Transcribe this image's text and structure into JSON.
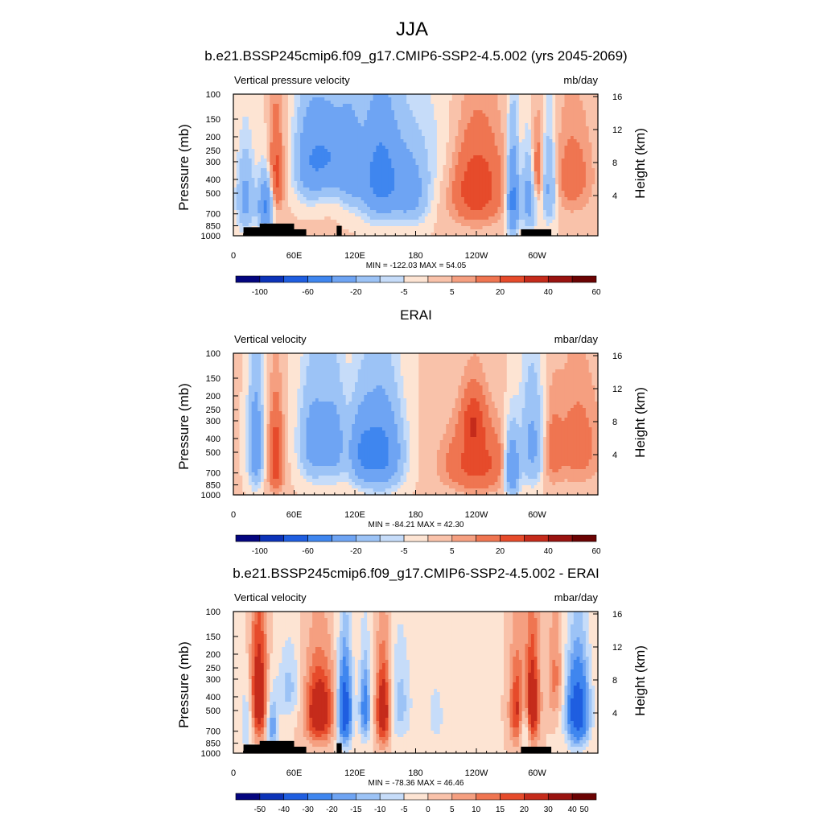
{
  "main_title": "JJA",
  "panels": [
    {
      "title": "b.e21.BSSP245cmip6.f09_g17.CMIP6-SSP2-4.5.002 (yrs 2045-2069)",
      "left_label": "Vertical pressure velocity",
      "right_label": "mb/day",
      "stats": "MIN = -122.03  MAX =  54.05",
      "colorbar": [
        "-100",
        "-60",
        "-20",
        "-5",
        "5",
        "20",
        "40",
        "60"
      ]
    },
    {
      "title": "ERAI",
      "left_label": "Vertical velocity",
      "right_label": "mbar/day",
      "stats": "MIN = -84.21  MAX =  42.30",
      "colorbar": [
        "-100",
        "-60",
        "-20",
        "-5",
        "5",
        "20",
        "40",
        "60"
      ]
    },
    {
      "title": "b.e21.BSSP245cmip6.f09_g17.CMIP6-SSP2-4.5.002 - ERAI",
      "left_label": "Vertical velocity",
      "right_label": "mbar/day",
      "stats": "MIN = -78.36  MAX =  46.46",
      "colorbar": [
        "-50",
        "-40",
        "-30",
        "-20",
        "-15",
        "-10",
        "-5",
        "0",
        "5",
        "10",
        "15",
        "20",
        "30",
        "40",
        "50"
      ]
    }
  ],
  "axes": {
    "ylabel": "Pressure (mb)",
    "y2label": "Height (km)",
    "yticks": [
      "100",
      "150",
      "200",
      "250",
      "300",
      "400",
      "500",
      "700",
      "850",
      "1000"
    ],
    "y2ticks": [
      "16",
      "12",
      "8",
      "4"
    ],
    "xticks": [
      "0",
      "60E",
      "120E",
      "180",
      "120W",
      "60W"
    ]
  },
  "colors": {
    "twelve_level": [
      "#04057f",
      "#0c33b8",
      "#1f5ee0",
      "#3f86ef",
      "#6ea4f3",
      "#9cc3f6",
      "#c6dcf9",
      "#fde4d3",
      "#f9c2aa",
      "#f59f80",
      "#ef7551",
      "#e64b2b",
      "#c52b1b",
      "#991310",
      "#6b0303"
    ],
    "land": "#000000"
  },
  "chart_data": [
    {
      "type": "heatmap",
      "title": "b.e21.BSSP245cmip6.f09_g17.CMIP6-SSP2-4.5.002 (yrs 2045-2069)",
      "quantity": "Vertical pressure velocity",
      "units": "mb/day",
      "x_range_deg": [
        0,
        360
      ],
      "y_levels_mb": [
        100,
        150,
        200,
        250,
        300,
        400,
        500,
        700,
        850,
        1000
      ],
      "contour_levels": [
        -100,
        -80,
        -60,
        -40,
        -20,
        -10,
        -5,
        0,
        5,
        10,
        20,
        30,
        40,
        50,
        60
      ],
      "min": -122.03,
      "max": 54.05,
      "features": [
        {
          "lon": 12,
          "p": 550,
          "v": -25,
          "sx": 6,
          "sy": 230
        },
        {
          "lon": 32,
          "p": 620,
          "v": -45,
          "sx": 5,
          "sy": 180
        },
        {
          "lon": 42,
          "p": 380,
          "v": 25,
          "sx": 5,
          "sy": 200
        },
        {
          "lon": 75,
          "p": 300,
          "v": -30,
          "sx": 10,
          "sy": 160
        },
        {
          "lon": 95,
          "p": 280,
          "v": -35,
          "sx": 12,
          "sy": 140
        },
        {
          "lon": 115,
          "p": 320,
          "v": -25,
          "sx": 8,
          "sy": 180
        },
        {
          "lon": 145,
          "p": 380,
          "v": -50,
          "sx": 14,
          "sy": 220
        },
        {
          "lon": 175,
          "p": 500,
          "v": -25,
          "sx": 12,
          "sy": 200
        },
        {
          "lon": 240,
          "p": 450,
          "v": 30,
          "sx": 18,
          "sy": 230
        },
        {
          "lon": 276,
          "p": 550,
          "v": -50,
          "sx": 4,
          "sy": 260
        },
        {
          "lon": 292,
          "p": 550,
          "v": -30,
          "sx": 5,
          "sy": 220
        },
        {
          "lon": 300,
          "p": 350,
          "v": 20,
          "sx": 4,
          "sy": 150
        },
        {
          "lon": 312,
          "p": 450,
          "v": -25,
          "sx": 5,
          "sy": 220
        },
        {
          "lon": 335,
          "p": 380,
          "v": 15,
          "sx": 14,
          "sy": 200
        },
        {
          "lon": 200,
          "p": 250,
          "v": -6,
          "sx": 25,
          "sy": 200
        }
      ]
    },
    {
      "type": "heatmap",
      "title": "ERAI",
      "quantity": "Vertical velocity",
      "units": "mbar/day",
      "x_range_deg": [
        0,
        360
      ],
      "y_levels_mb": [
        100,
        150,
        200,
        250,
        300,
        400,
        500,
        700,
        850,
        1000
      ],
      "contour_levels": [
        -100,
        -80,
        -60,
        -40,
        -20,
        -10,
        -5,
        0,
        5,
        10,
        20,
        30,
        40,
        50,
        60
      ],
      "min": -84.21,
      "max": 42.3,
      "features": [
        {
          "lon": 22,
          "p": 450,
          "v": -35,
          "sx": 5,
          "sy": 250
        },
        {
          "lon": 42,
          "p": 550,
          "v": 30,
          "sx": 5,
          "sy": 250
        },
        {
          "lon": 80,
          "p": 420,
          "v": -30,
          "sx": 10,
          "sy": 220
        },
        {
          "lon": 100,
          "p": 420,
          "v": -25,
          "sx": 8,
          "sy": 220
        },
        {
          "lon": 145,
          "p": 500,
          "v": -50,
          "sx": 14,
          "sy": 240
        },
        {
          "lon": 125,
          "p": 500,
          "v": -25,
          "sx": 8,
          "sy": 200
        },
        {
          "lon": 240,
          "p": 600,
          "v": 25,
          "sx": 22,
          "sy": 220
        },
        {
          "lon": 237,
          "p": 300,
          "v": 22,
          "sx": 8,
          "sy": 100
        },
        {
          "lon": 275,
          "p": 650,
          "v": -45,
          "sx": 5,
          "sy": 220
        },
        {
          "lon": 295,
          "p": 450,
          "v": -25,
          "sx": 8,
          "sy": 250
        },
        {
          "lon": 340,
          "p": 450,
          "v": 15,
          "sx": 16,
          "sy": 250
        },
        {
          "lon": 315,
          "p": 500,
          "v": 12,
          "sx": 6,
          "sy": 220
        }
      ]
    },
    {
      "type": "heatmap",
      "title": "b.e21.BSSP245cmip6.f09_g17.CMIP6-SSP2-4.5.002 - ERAI",
      "quantity": "Vertical velocity",
      "units": "mbar/day",
      "x_range_deg": [
        0,
        360
      ],
      "y_levels_mb": [
        100,
        150,
        200,
        250,
        300,
        400,
        500,
        700,
        850,
        1000
      ],
      "contour_levels": [
        -50,
        -40,
        -30,
        -20,
        -15,
        -10,
        -5,
        0,
        5,
        10,
        15,
        20,
        30,
        40,
        50
      ],
      "min": -78.36,
      "max": 46.46,
      "features": [
        {
          "lon": 14,
          "p": 600,
          "v": -12,
          "sx": 5,
          "sy": 250
        },
        {
          "lon": 25,
          "p": 400,
          "v": 30,
          "sx": 6,
          "sy": 260
        },
        {
          "lon": 38,
          "p": 650,
          "v": -20,
          "sx": 4,
          "sy": 200
        },
        {
          "lon": 55,
          "p": 350,
          "v": -12,
          "sx": 8,
          "sy": 150
        },
        {
          "lon": 85,
          "p": 500,
          "v": 30,
          "sx": 10,
          "sy": 220
        },
        {
          "lon": 110,
          "p": 500,
          "v": -40,
          "sx": 5,
          "sy": 250
        },
        {
          "lon": 130,
          "p": 480,
          "v": -25,
          "sx": 4,
          "sy": 220
        },
        {
          "lon": 148,
          "p": 500,
          "v": 30,
          "sx": 5,
          "sy": 240
        },
        {
          "lon": 165,
          "p": 450,
          "v": -12,
          "sx": 8,
          "sy": 250
        },
        {
          "lon": 200,
          "p": 550,
          "v": -8,
          "sx": 6,
          "sy": 200
        },
        {
          "lon": 280,
          "p": 500,
          "v": 22,
          "sx": 5,
          "sy": 250
        },
        {
          "lon": 295,
          "p": 450,
          "v": 30,
          "sx": 5,
          "sy": 260
        },
        {
          "lon": 288,
          "p": 650,
          "v": -15,
          "sx": 4,
          "sy": 200
        },
        {
          "lon": 340,
          "p": 500,
          "v": -40,
          "sx": 8,
          "sy": 250
        },
        {
          "lon": 318,
          "p": 300,
          "v": 12,
          "sx": 5,
          "sy": 180
        }
      ]
    }
  ]
}
